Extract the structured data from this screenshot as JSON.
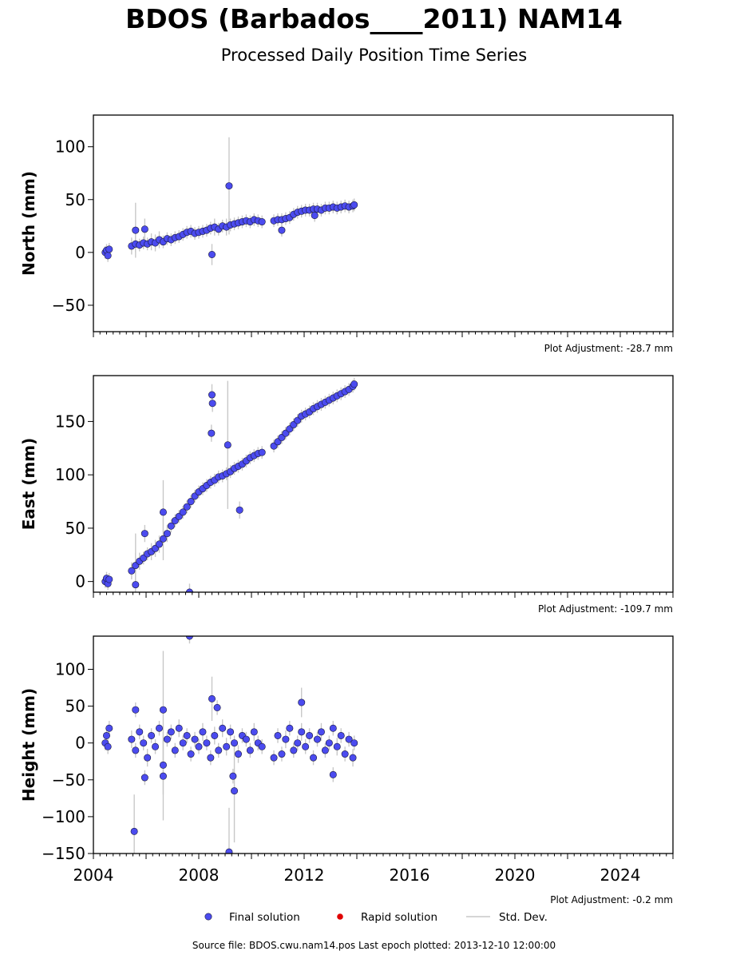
{
  "figure": {
    "title": "BDOS (Barbados____2011) NAM14",
    "subtitle": "Processed Daily Position Time Series",
    "source_line": "Source file: BDOS.cwu.nam14.pos  Last epoch plotted: 2013-12-10 12:00:00",
    "colors": {
      "final": "#4b4bef",
      "rapid": "#e00000",
      "stddev": "#c8c8c8",
      "marker_edge": "#1a1a3a"
    }
  },
  "legend": {
    "placement": "bottom-center",
    "final_label": "Final solution",
    "rapid_label": "Rapid solution",
    "stddev_label": "Std. Dev."
  },
  "chart_data": [
    {
      "type": "scatter",
      "ylabel": "North (mm)",
      "adjustment": "Plot Adjustment: -28.7 mm",
      "xlim": [
        2004.0,
        2026.0
      ],
      "ylim": [
        -75,
        130
      ],
      "yticks": [
        -50,
        0,
        50,
        100
      ],
      "xticks": [
        2004,
        2008,
        2012,
        2016,
        2020,
        2024
      ],
      "show_xtick_labels": false,
      "series": [
        {
          "x": [
            2004.45,
            2004.5,
            2004.55,
            2004.6,
            2005.45,
            2005.6,
            2005.75,
            2005.9,
            2006.05,
            2006.2,
            2006.35,
            2006.5,
            2006.65,
            2006.8,
            2006.95,
            2007.1,
            2007.25,
            2007.4,
            2007.55,
            2007.7,
            2007.85,
            2008.0,
            2008.15,
            2008.3,
            2008.45,
            2008.6,
            2008.75,
            2008.9,
            2009.05,
            2009.2,
            2009.35,
            2009.5,
            2009.65,
            2009.8,
            2009.95,
            2010.1,
            2010.25,
            2010.4,
            2010.85,
            2011.0,
            2011.15,
            2011.3,
            2011.45,
            2011.6,
            2011.75,
            2011.9,
            2012.05,
            2012.2,
            2012.35,
            2012.5,
            2012.65,
            2012.8,
            2012.95,
            2013.1,
            2013.25,
            2013.4,
            2013.55,
            2013.7,
            2013.85,
            2013.9,
            2005.6,
            2005.95,
            2008.5,
            2009.15,
            2011.15,
            2012.4
          ],
          "y": [
            0,
            2,
            -3,
            3,
            6,
            8,
            7,
            9,
            8,
            10,
            9,
            12,
            10,
            13,
            12,
            14,
            15,
            17,
            19,
            20,
            18,
            19,
            20,
            21,
            23,
            24,
            22,
            25,
            24,
            26,
            27,
            28,
            29,
            30,
            29,
            31,
            30,
            29,
            30,
            31,
            31,
            32,
            33,
            36,
            38,
            39,
            40,
            40,
            41,
            41,
            40,
            42,
            42,
            43,
            42,
            43,
            44,
            43,
            44,
            45,
            21,
            22,
            -2,
            63,
            21,
            35
          ],
          "err": [
            6,
            6,
            6,
            6,
            8,
            8,
            6,
            6,
            6,
            8,
            8,
            8,
            6,
            6,
            6,
            6,
            6,
            6,
            6,
            6,
            6,
            6,
            6,
            6,
            6,
            8,
            6,
            6,
            8,
            6,
            6,
            6,
            6,
            6,
            6,
            6,
            6,
            6,
            6,
            6,
            6,
            6,
            6,
            6,
            6,
            6,
            6,
            6,
            6,
            6,
            6,
            6,
            6,
            6,
            6,
            6,
            6,
            6,
            6,
            6,
            26,
            10,
            10,
            46,
            6,
            6
          ]
        }
      ]
    },
    {
      "type": "scatter",
      "ylabel": "East (mm)",
      "adjustment": "Plot Adjustment: -109.7 mm",
      "xlim": [
        2004.0,
        2026.0
      ],
      "ylim": [
        -10,
        193
      ],
      "yticks": [
        0,
        50,
        100,
        150
      ],
      "xticks": [
        2004,
        2008,
        2012,
        2016,
        2020,
        2024
      ],
      "show_xtick_labels": false,
      "series": [
        {
          "x": [
            2004.45,
            2004.5,
            2004.55,
            2004.6,
            2005.45,
            2005.6,
            2005.75,
            2005.9,
            2006.05,
            2006.2,
            2006.35,
            2006.5,
            2006.65,
            2006.8,
            2006.95,
            2007.1,
            2007.25,
            2007.4,
            2007.55,
            2007.7,
            2007.85,
            2008.0,
            2008.15,
            2008.3,
            2008.45,
            2008.6,
            2008.75,
            2008.9,
            2009.05,
            2009.2,
            2009.35,
            2009.5,
            2009.65,
            2009.8,
            2009.95,
            2010.1,
            2010.25,
            2010.4,
            2010.85,
            2011.0,
            2011.15,
            2011.3,
            2011.45,
            2011.6,
            2011.75,
            2011.9,
            2012.05,
            2012.2,
            2012.35,
            2012.5,
            2012.65,
            2012.8,
            2012.95,
            2013.1,
            2013.25,
            2013.4,
            2013.55,
            2013.7,
            2013.85,
            2013.9,
            2005.6,
            2005.95,
            2006.65,
            2007.65,
            2008.5,
            2008.52,
            2008.48,
            2009.1,
            2009.55
          ],
          "y": [
            0,
            3,
            -2,
            2,
            10,
            15,
            19,
            22,
            26,
            28,
            31,
            35,
            40,
            45,
            52,
            57,
            61,
            65,
            70,
            75,
            80,
            84,
            87,
            90,
            93,
            95,
            98,
            99,
            101,
            103,
            106,
            108,
            110,
            113,
            116,
            118,
            120,
            121,
            127,
            131,
            135,
            139,
            143,
            147,
            151,
            155,
            157,
            159,
            162,
            164,
            166,
            168,
            170,
            172,
            174,
            176,
            178,
            180,
            183,
            185,
            -3,
            45,
            65,
            -10,
            175,
            167,
            139,
            128,
            67
          ],
          "err": [
            6,
            6,
            6,
            6,
            8,
            30,
            8,
            6,
            6,
            8,
            8,
            8,
            20,
            8,
            6,
            6,
            6,
            6,
            6,
            6,
            6,
            6,
            6,
            6,
            6,
            6,
            6,
            6,
            6,
            6,
            6,
            6,
            6,
            6,
            6,
            6,
            6,
            6,
            6,
            6,
            6,
            6,
            6,
            6,
            6,
            6,
            6,
            6,
            6,
            6,
            6,
            6,
            6,
            6,
            6,
            6,
            6,
            6,
            6,
            6,
            30,
            8,
            30,
            8,
            10,
            8,
            8,
            60,
            8
          ]
        }
      ]
    },
    {
      "type": "scatter",
      "ylabel": "Height (mm)",
      "adjustment": "Plot Adjustment: -0.2 mm",
      "xlim": [
        2004.0,
        2026.0
      ],
      "ylim": [
        -150,
        145
      ],
      "yticks": [
        -150,
        -100,
        -50,
        0,
        50,
        100
      ],
      "xticks": [
        2004,
        2008,
        2012,
        2016,
        2020,
        2024
      ],
      "show_xtick_labels": true,
      "series": [
        {
          "x": [
            2004.45,
            2004.5,
            2004.55,
            2004.6,
            2005.45,
            2005.6,
            2005.75,
            2005.9,
            2006.05,
            2006.2,
            2006.35,
            2006.5,
            2006.65,
            2006.8,
            2006.95,
            2007.1,
            2007.25,
            2007.4,
            2007.55,
            2007.7,
            2007.85,
            2008.0,
            2008.15,
            2008.3,
            2008.45,
            2008.6,
            2008.75,
            2008.9,
            2009.05,
            2009.2,
            2009.35,
            2009.5,
            2009.65,
            2009.8,
            2009.95,
            2010.1,
            2010.25,
            2010.4,
            2010.85,
            2011.0,
            2011.15,
            2011.3,
            2011.45,
            2011.6,
            2011.75,
            2011.9,
            2012.05,
            2012.2,
            2012.35,
            2012.5,
            2012.65,
            2012.8,
            2012.95,
            2013.1,
            2013.25,
            2013.4,
            2013.55,
            2013.7,
            2013.85,
            2013.9,
            2005.55,
            2005.6,
            2006.65,
            2007.65,
            2008.5,
            2008.7,
            2009.15,
            2009.3,
            2009.35,
            2011.9,
            2005.95,
            2006.65,
            2013.1
          ],
          "y": [
            0,
            10,
            -5,
            20,
            5,
            -10,
            15,
            0,
            -20,
            10,
            -5,
            20,
            -30,
            5,
            15,
            -10,
            20,
            0,
            10,
            -15,
            5,
            -5,
            15,
            0,
            -20,
            10,
            -10,
            20,
            -5,
            15,
            0,
            -15,
            10,
            5,
            -10,
            15,
            0,
            -5,
            -20,
            10,
            -15,
            5,
            20,
            -10,
            0,
            15,
            -5,
            10,
            -20,
            5,
            15,
            -10,
            0,
            20,
            -5,
            10,
            -15,
            5,
            -20,
            0,
            -120,
            45,
            45,
            145,
            60,
            48,
            -148,
            -45,
            -65,
            55,
            -47,
            -45,
            -43
          ],
          "err": [
            10,
            10,
            10,
            10,
            12,
            10,
            10,
            10,
            12,
            10,
            10,
            10,
            40,
            10,
            10,
            10,
            12,
            10,
            10,
            10,
            10,
            10,
            12,
            10,
            10,
            12,
            10,
            12,
            12,
            10,
            10,
            12,
            10,
            10,
            10,
            12,
            10,
            10,
            10,
            10,
            10,
            12,
            10,
            10,
            10,
            12,
            10,
            10,
            10,
            10,
            12,
            10,
            10,
            10,
            12,
            10,
            10,
            10,
            12,
            10,
            50,
            10,
            80,
            10,
            30,
            10,
            60,
            10,
            70,
            20,
            10,
            60,
            10
          ]
        }
      ]
    }
  ]
}
